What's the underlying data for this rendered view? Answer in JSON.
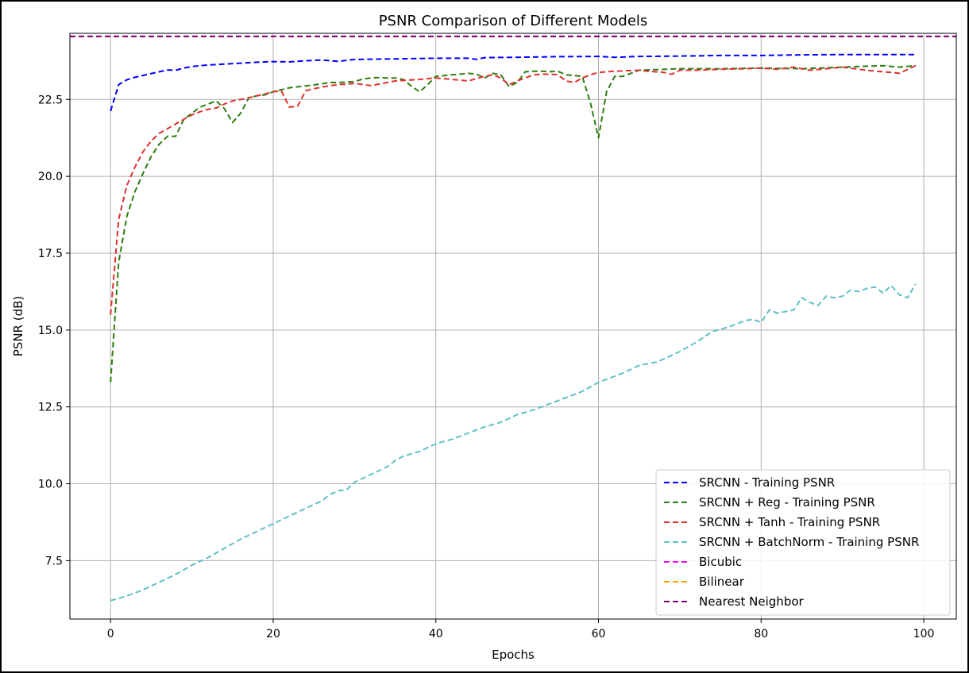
{
  "chart_data": {
    "type": "line",
    "title": "PSNR Comparison of Different Models",
    "xlabel": "Epochs",
    "ylabel": "PSNR (dB)",
    "xlim": [
      -5,
      104
    ],
    "ylim": [
      5.6,
      24.65
    ],
    "x_ticks": [
      0,
      20,
      40,
      60,
      80,
      100
    ],
    "y_ticks": [
      7.5,
      10.0,
      12.5,
      15.0,
      17.5,
      20.0,
      22.5
    ],
    "x_tick_labels": [
      "0",
      "20",
      "40",
      "60",
      "80",
      "100"
    ],
    "y_tick_labels": [
      "7.5",
      "10.0",
      "12.5",
      "15.0",
      "17.5",
      "20.0",
      "22.5"
    ],
    "grid": true,
    "legend_position": "lower-right",
    "line_style": "dashed",
    "series": [
      {
        "name": "SRCNN - Training PSNR",
        "color": "#0000ff",
        "x": [
          0,
          1,
          2,
          3,
          4,
          5,
          6,
          7,
          8,
          9,
          10,
          12,
          14,
          16,
          18,
          20,
          22,
          24,
          26,
          28,
          30,
          35,
          40,
          44,
          45,
          46,
          50,
          55,
          60,
          62,
          65,
          70,
          75,
          80,
          85,
          90,
          95,
          99
        ],
        "y": [
          22.12,
          22.98,
          23.14,
          23.22,
          23.28,
          23.34,
          23.4,
          23.46,
          23.45,
          23.52,
          23.57,
          23.62,
          23.65,
          23.68,
          23.71,
          23.73,
          23.72,
          23.76,
          23.78,
          23.74,
          23.8,
          23.82,
          23.84,
          23.84,
          23.8,
          23.86,
          23.87,
          23.89,
          23.9,
          23.87,
          23.9,
          23.91,
          23.93,
          23.93,
          23.95,
          23.96,
          23.96,
          23.96
        ]
      },
      {
        "name": "SRCNN + Reg - Training PSNR",
        "color": "#2e7d0e",
        "x": [
          0,
          1,
          2,
          3,
          4,
          5,
          6,
          7,
          8,
          9,
          10,
          11,
          12,
          13,
          14,
          15,
          16,
          17,
          18,
          19,
          20,
          22,
          25,
          27,
          28,
          30,
          31,
          32,
          33,
          34,
          35,
          36,
          37,
          38,
          39,
          40,
          42,
          44,
          45,
          46,
          47,
          48,
          49,
          50,
          51,
          52,
          53,
          54,
          55,
          56,
          57,
          58,
          59,
          60,
          61,
          62,
          63,
          65,
          70,
          75,
          80,
          85,
          90,
          95,
          97,
          99
        ],
        "y": [
          13.3,
          17.2,
          18.7,
          19.5,
          20.1,
          20.65,
          21.05,
          21.3,
          21.3,
          21.85,
          22.05,
          22.25,
          22.35,
          22.45,
          22.2,
          21.75,
          22.05,
          22.55,
          22.62,
          22.65,
          22.75,
          22.88,
          22.97,
          23.05,
          23.05,
          23.08,
          23.16,
          23.2,
          23.21,
          23.2,
          23.2,
          23.15,
          22.93,
          22.75,
          22.98,
          23.25,
          23.3,
          23.35,
          23.32,
          23.2,
          23.35,
          23.3,
          22.92,
          23.05,
          23.4,
          23.42,
          23.42,
          23.4,
          23.42,
          23.3,
          23.28,
          23.25,
          22.4,
          21.25,
          22.75,
          23.25,
          23.25,
          23.45,
          23.5,
          23.5,
          23.52,
          23.5,
          23.55,
          23.6,
          23.55,
          23.6
        ]
      },
      {
        "name": "SRCNN + Tanh - Training PSNR",
        "color": "#e03030",
        "x": [
          0,
          1,
          2,
          3,
          4,
          5,
          6,
          7,
          8,
          9,
          10,
          11,
          12,
          13,
          14,
          15,
          16,
          17,
          18,
          19,
          20,
          21,
          22,
          23,
          24,
          25,
          26,
          27,
          28,
          29,
          30,
          32,
          34,
          35,
          36,
          38,
          40,
          42,
          44,
          46,
          47,
          48,
          49,
          50,
          51,
          52,
          53,
          54,
          55,
          56,
          57,
          58,
          59,
          60,
          62,
          65,
          66,
          68,
          69,
          70,
          72,
          75,
          78,
          80,
          82,
          84,
          86,
          88,
          90,
          92,
          94,
          96,
          97,
          99
        ],
        "y": [
          15.5,
          18.6,
          19.7,
          20.3,
          20.8,
          21.15,
          21.4,
          21.55,
          21.7,
          21.85,
          22.0,
          22.1,
          22.18,
          22.22,
          22.35,
          22.45,
          22.5,
          22.55,
          22.62,
          22.68,
          22.75,
          22.78,
          22.25,
          22.28,
          22.78,
          22.85,
          22.9,
          22.95,
          22.98,
          23.0,
          23.02,
          22.95,
          23.05,
          23.1,
          23.12,
          23.15,
          23.2,
          23.15,
          23.1,
          23.25,
          23.3,
          23.2,
          22.98,
          23.1,
          23.2,
          23.3,
          23.32,
          23.32,
          23.3,
          23.1,
          23.05,
          23.2,
          23.3,
          23.38,
          23.42,
          23.45,
          23.42,
          23.38,
          23.32,
          23.45,
          23.45,
          23.48,
          23.5,
          23.52,
          23.48,
          23.55,
          23.45,
          23.5,
          23.55,
          23.48,
          23.42,
          23.38,
          23.35,
          23.6
        ]
      },
      {
        "name": "SRCNN + BatchNorm - Training PSNR",
        "color": "#5fbfc7",
        "x": [
          0,
          2,
          4,
          6,
          8,
          10,
          12,
          14,
          16,
          18,
          20,
          22,
          24,
          26,
          27,
          28,
          29,
          30,
          32,
          34,
          35,
          36,
          38,
          40,
          42,
          44,
          46,
          48,
          50,
          52,
          54,
          56,
          58,
          60,
          62,
          63,
          65,
          67,
          68,
          70,
          72,
          74,
          76,
          78,
          79,
          80,
          81,
          82,
          84,
          85,
          86,
          87,
          88,
          89,
          90,
          91,
          92,
          93,
          94,
          95,
          96,
          97,
          98,
          99
        ],
        "y": [
          6.2,
          6.35,
          6.55,
          6.8,
          7.05,
          7.35,
          7.6,
          7.9,
          8.2,
          8.45,
          8.7,
          8.95,
          9.2,
          9.45,
          9.65,
          9.78,
          9.8,
          10.05,
          10.3,
          10.55,
          10.75,
          10.9,
          11.05,
          11.3,
          11.45,
          11.65,
          11.85,
          12.0,
          12.25,
          12.4,
          12.6,
          12.8,
          13.0,
          13.3,
          13.5,
          13.6,
          13.85,
          13.95,
          14.05,
          14.3,
          14.6,
          14.95,
          15.1,
          15.3,
          15.35,
          15.25,
          15.65,
          15.55,
          15.65,
          16.05,
          15.9,
          15.8,
          16.1,
          16.05,
          16.1,
          16.3,
          16.25,
          16.35,
          16.4,
          16.2,
          16.45,
          16.15,
          16.05,
          16.5
        ]
      },
      {
        "name": "Bicubic",
        "color": "#ff00ff",
        "hline": 24.55
      },
      {
        "name": "Bilinear",
        "color": "#ffa500",
        "hline": 24.55
      },
      {
        "name": "Nearest Neighbor",
        "color": "#800080",
        "hline": 24.55
      }
    ]
  }
}
